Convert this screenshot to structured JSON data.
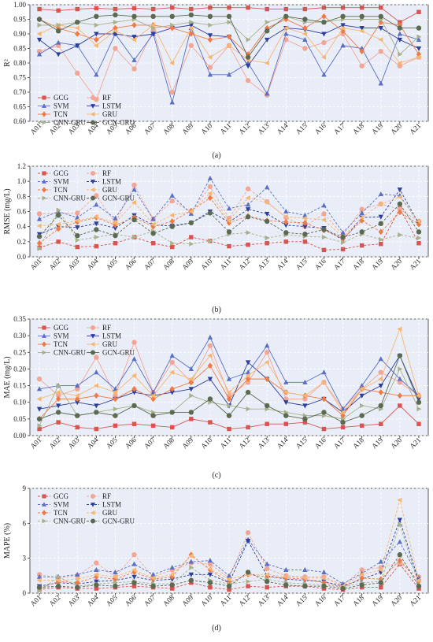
{
  "palette": {
    "GCG": "#d9534f",
    "RF": "#f2a696",
    "SVM": "#5b6fc4",
    "LSTM": "#2d3e9b",
    "TCN": "#ee7b45",
    "GRU": "#f6b774",
    "CNN-GRU": "#a9b18a",
    "GCN-GRU": "#5c6a52"
  },
  "markers": {
    "GCG": "square",
    "RF": "circle",
    "SVM": "triangle-up",
    "LSTM": "triangle-down",
    "TCN": "diamond",
    "GRU": "triangle-left",
    "CNN-GRU": "triangle-right",
    "GCN-GRU": "circle"
  },
  "chart_data": [
    {
      "type": "line",
      "panel": "(a)",
      "ylabel": "R²",
      "ylim": [
        0.6,
        1.0
      ],
      "yticks": [
        "0.60",
        "0.65",
        "0.70",
        "0.75",
        "0.80",
        "0.85",
        "0.90",
        "0.95",
        "1.00"
      ],
      "yticks_values": [
        0.6,
        0.65,
        0.7,
        0.75,
        0.8,
        0.85,
        0.9,
        0.95,
        1.0
      ],
      "dashed": false,
      "legend_position": "bottom-left",
      "categories": [
        "A01",
        "A02",
        "A03",
        "A04",
        "A05",
        "A06",
        "A07",
        "A08",
        "A09",
        "A10",
        "A11",
        "A12",
        "A13",
        "A14",
        "A15",
        "A16",
        "A17",
        "A18",
        "A19",
        "A20",
        "A21"
      ],
      "series": [
        {
          "name": "GCG",
          "values": [
            0.985,
            0.98,
            0.985,
            0.988,
            0.985,
            0.988,
            0.985,
            0.99,
            0.985,
            0.99,
            0.99,
            0.99,
            0.985,
            0.985,
            0.985,
            0.99,
            0.99,
            0.99,
            0.99,
            0.94,
            0.975
          ]
        },
        {
          "name": "RF",
          "values": [
            0.84,
            0.86,
            0.765,
            0.675,
            0.85,
            0.78,
            0.91,
            0.7,
            0.86,
            0.785,
            0.86,
            0.74,
            0.69,
            0.88,
            0.85,
            0.87,
            0.9,
            0.79,
            0.84,
            0.79,
            0.82
          ]
        },
        {
          "name": "SVM",
          "values": [
            0.83,
            0.87,
            0.86,
            0.76,
            0.9,
            0.81,
            0.9,
            0.665,
            0.92,
            0.76,
            0.76,
            0.8,
            0.695,
            0.9,
            0.88,
            0.76,
            0.86,
            0.85,
            0.73,
            0.9,
            0.88
          ]
        },
        {
          "name": "LSTM",
          "values": [
            0.88,
            0.83,
            0.86,
            0.9,
            0.9,
            0.89,
            0.9,
            0.92,
            0.93,
            0.895,
            0.89,
            0.79,
            0.88,
            0.92,
            0.915,
            0.9,
            0.93,
            0.92,
            0.92,
            0.88,
            0.85
          ]
        },
        {
          "name": "TCN",
          "values": [
            0.95,
            0.92,
            0.9,
            0.88,
            0.92,
            0.93,
            0.93,
            0.92,
            0.9,
            0.88,
            0.89,
            0.83,
            0.92,
            0.95,
            0.92,
            0.96,
            0.91,
            0.84,
            0.94,
            0.93,
            0.83
          ]
        },
        {
          "name": "GRU",
          "values": [
            0.9,
            0.93,
            0.92,
            0.86,
            0.91,
            0.88,
            0.93,
            0.8,
            0.92,
            0.82,
            0.86,
            0.81,
            0.8,
            0.92,
            0.9,
            0.82,
            0.92,
            0.91,
            0.88,
            0.8,
            0.82
          ]
        },
        {
          "name": "CNN-GRU",
          "values": [
            0.93,
            0.93,
            0.94,
            0.93,
            0.94,
            0.95,
            0.92,
            0.93,
            0.94,
            0.93,
            0.94,
            0.88,
            0.94,
            0.96,
            0.94,
            0.94,
            0.95,
            0.95,
            0.95,
            0.83,
            0.89
          ]
        },
        {
          "name": "GCN-GRU",
          "values": [
            0.95,
            0.91,
            0.94,
            0.96,
            0.965,
            0.96,
            0.96,
            0.96,
            0.965,
            0.96,
            0.96,
            0.82,
            0.91,
            0.96,
            0.95,
            0.94,
            0.96,
            0.96,
            0.96,
            0.92,
            0.92
          ]
        }
      ]
    },
    {
      "type": "line",
      "panel": "(b)",
      "ylabel": "RMSE (mg/L)",
      "ylim": [
        0.0,
        1.2
      ],
      "yticks": [
        "0.0",
        "0.2",
        "0.4",
        "0.6",
        "0.8",
        "1.0",
        "1.2"
      ],
      "yticks_values": [
        0,
        0.2,
        0.4,
        0.6,
        0.8,
        1.0,
        1.2
      ],
      "dashed": true,
      "legend_position": "top-left",
      "categories": [
        "A01",
        "A02",
        "A03",
        "A04",
        "A05",
        "A06",
        "A07",
        "A08",
        "A09",
        "A10",
        "A11",
        "A12",
        "A13",
        "A14",
        "A15",
        "A16",
        "A17",
        "A18",
        "A19",
        "A20",
        "A21"
      ],
      "series": [
        {
          "name": "GCG",
          "values": [
            0.12,
            0.2,
            0.13,
            0.14,
            0.18,
            0.26,
            0.18,
            0.13,
            0.26,
            0.21,
            0.14,
            0.16,
            0.18,
            0.2,
            0.2,
            0.09,
            0.1,
            0.15,
            0.17,
            0.64,
            0.18
          ]
        },
        {
          "name": "RF",
          "values": [
            0.57,
            0.57,
            0.58,
            0.81,
            0.45,
            0.95,
            0.5,
            0.74,
            0.6,
            0.93,
            0.51,
            0.9,
            0.73,
            0.52,
            0.4,
            0.57,
            0.29,
            0.63,
            0.7,
            0.63,
            0.47
          ]
        },
        {
          "name": "SVM",
          "values": [
            0.5,
            0.6,
            0.52,
            0.69,
            0.51,
            0.89,
            0.5,
            0.81,
            0.57,
            1.04,
            0.64,
            0.69,
            0.92,
            0.6,
            0.55,
            0.68,
            0.32,
            0.58,
            0.83,
            0.81,
            0.45
          ]
        },
        {
          "name": "LSTM",
          "values": [
            0.3,
            0.4,
            0.39,
            0.44,
            0.38,
            0.55,
            0.42,
            0.41,
            0.45,
            0.6,
            0.46,
            0.63,
            0.57,
            0.42,
            0.4,
            0.38,
            0.22,
            0.52,
            0.53,
            0.89,
            0.44
          ]
        },
        {
          "name": "TCN",
          "values": [
            0.18,
            0.37,
            0.46,
            0.52,
            0.42,
            0.52,
            0.4,
            0.47,
            0.61,
            0.78,
            0.45,
            0.54,
            0.48,
            0.46,
            0.45,
            0.35,
            0.24,
            0.48,
            0.33,
            0.59,
            0.43
          ]
        },
        {
          "name": "GRU",
          "values": [
            0.41,
            0.43,
            0.48,
            0.53,
            0.45,
            0.72,
            0.43,
            0.55,
            0.6,
            0.84,
            0.48,
            0.78,
            0.72,
            0.53,
            0.51,
            0.49,
            0.26,
            0.52,
            0.7,
            0.79,
            0.47
          ]
        },
        {
          "name": "CNN-GRU",
          "values": [
            0.11,
            0.62,
            0.22,
            0.26,
            0.3,
            0.26,
            0.34,
            0.18,
            0.17,
            0.21,
            0.3,
            0.32,
            0.25,
            0.29,
            0.27,
            0.26,
            0.19,
            0.3,
            0.23,
            0.29,
            0.25
          ]
        },
        {
          "name": "GCN-GRU",
          "values": [
            0.27,
            0.55,
            0.28,
            0.36,
            0.28,
            0.49,
            0.31,
            0.4,
            0.45,
            0.58,
            0.33,
            0.53,
            0.47,
            0.32,
            0.3,
            0.36,
            0.26,
            0.33,
            0.44,
            0.7,
            0.33
          ]
        }
      ]
    },
    {
      "type": "line",
      "panel": "(c)",
      "ylabel": "MAE (mg/L)",
      "ylim": [
        0.0,
        0.35
      ],
      "yticks": [
        "0.00",
        "0.05",
        "0.10",
        "0.15",
        "0.20",
        "0.25",
        "0.30",
        "0.35"
      ],
      "yticks_values": [
        0,
        0.05,
        0.1,
        0.15,
        0.2,
        0.25,
        0.3,
        0.35
      ],
      "dashed": false,
      "legend_position": "top-left",
      "categories": [
        "A01",
        "A02",
        "A03",
        "A04",
        "A05",
        "A06",
        "A07",
        "A08",
        "A09",
        "A10",
        "A11",
        "A12",
        "A13",
        "A14",
        "A15",
        "A16",
        "A17",
        "A18",
        "A19",
        "A20",
        "A21"
      ],
      "series": [
        {
          "name": "GCG",
          "values": [
            0.02,
            0.04,
            0.025,
            0.02,
            0.03,
            0.035,
            0.03,
            0.025,
            0.05,
            0.04,
            0.02,
            0.025,
            0.035,
            0.035,
            0.04,
            0.02,
            0.025,
            0.03,
            0.035,
            0.09,
            0.035
          ]
        },
        {
          "name": "RF",
          "values": [
            0.17,
            0.12,
            0.14,
            0.235,
            0.12,
            0.28,
            0.13,
            0.22,
            0.16,
            0.27,
            0.12,
            0.16,
            0.25,
            0.11,
            0.11,
            0.16,
            0.08,
            0.14,
            0.19,
            0.16,
            0.12
          ]
        },
        {
          "name": "SVM",
          "values": [
            0.14,
            0.15,
            0.15,
            0.19,
            0.14,
            0.23,
            0.13,
            0.24,
            0.2,
            0.295,
            0.17,
            0.19,
            0.27,
            0.16,
            0.16,
            0.19,
            0.08,
            0.15,
            0.23,
            0.17,
            0.12
          ]
        },
        {
          "name": "LSTM",
          "values": [
            0.08,
            0.09,
            0.1,
            0.09,
            0.11,
            0.13,
            0.12,
            0.13,
            0.14,
            0.17,
            0.09,
            0.22,
            0.17,
            0.1,
            0.09,
            0.11,
            0.07,
            0.12,
            0.15,
            0.24,
            0.11
          ]
        },
        {
          "name": "TCN",
          "values": [
            0.05,
            0.11,
            0.11,
            0.12,
            0.11,
            0.14,
            0.11,
            0.14,
            0.16,
            0.21,
            0.11,
            0.17,
            0.17,
            0.13,
            0.12,
            0.11,
            0.06,
            0.14,
            0.13,
            0.12,
            0.12
          ]
        },
        {
          "name": "GRU",
          "values": [
            0.11,
            0.13,
            0.12,
            0.15,
            0.13,
            0.18,
            0.12,
            0.19,
            0.17,
            0.24,
            0.13,
            0.18,
            0.22,
            0.13,
            0.12,
            0.16,
            0.07,
            0.14,
            0.17,
            0.32,
            0.12
          ]
        },
        {
          "name": "CNN-GRU",
          "values": [
            0.03,
            0.15,
            0.06,
            0.07,
            0.08,
            0.09,
            0.07,
            0.07,
            0.12,
            0.1,
            0.09,
            0.08,
            0.08,
            0.07,
            0.06,
            0.06,
            0.05,
            0.09,
            0.08,
            0.2,
            0.08
          ]
        },
        {
          "name": "GCN-GRU",
          "values": [
            0.05,
            0.07,
            0.06,
            0.07,
            0.06,
            0.09,
            0.06,
            0.07,
            0.07,
            0.11,
            0.06,
            0.13,
            0.09,
            0.06,
            0.05,
            0.07,
            0.04,
            0.06,
            0.09,
            0.24,
            0.1
          ]
        }
      ]
    },
    {
      "type": "line",
      "panel": "(d)",
      "ylabel": "MAPE (%)",
      "ylim": [
        0,
        9
      ],
      "yticks": [
        "0",
        "3",
        "6",
        "9"
      ],
      "yticks_values": [
        0,
        3,
        6,
        9
      ],
      "dashed": true,
      "legend_position": "top-left",
      "categories": [
        "A01",
        "A02",
        "A03",
        "A04",
        "A05",
        "A06",
        "A07",
        "A08",
        "A09",
        "A10",
        "A11",
        "A12",
        "A13",
        "A14",
        "A15",
        "A16",
        "A17",
        "A18",
        "A19",
        "A20",
        "A21"
      ],
      "series": [
        {
          "name": "GCG",
          "values": [
            0.3,
            0.5,
            0.4,
            0.4,
            0.5,
            0.6,
            0.5,
            0.4,
            0.9,
            0.5,
            0.3,
            0.6,
            0.5,
            0.6,
            0.6,
            0.4,
            0.3,
            0.5,
            0.5,
            2.5,
            0.4
          ]
        },
        {
          "name": "RF",
          "values": [
            1.6,
            1.3,
            1.5,
            2.6,
            1.4,
            3.3,
            1.4,
            2.0,
            2.6,
            2.5,
            1.3,
            5.2,
            2.1,
            1.5,
            1.4,
            1.4,
            0.7,
            2.0,
            2.2,
            2.6,
            1.4
          ]
        },
        {
          "name": "SVM",
          "values": [
            1.4,
            1.4,
            1.6,
            2.0,
            1.8,
            2.5,
            1.6,
            2.2,
            2.7,
            2.8,
            1.5,
            4.6,
            2.5,
            2.0,
            2.0,
            1.8,
            0.8,
            1.7,
            2.7,
            4.4,
            1.3
          ]
        },
        {
          "name": "LSTM",
          "values": [
            0.6,
            0.9,
            0.8,
            1.0,
            1.1,
            1.4,
            1.1,
            1.2,
            1.6,
            1.6,
            0.9,
            4.5,
            1.5,
            1.2,
            1.1,
            1.0,
            0.6,
            1.2,
            1.8,
            6.3,
            1.0
          ]
        },
        {
          "name": "TCN",
          "values": [
            0.4,
            1.0,
            0.9,
            1.4,
            1.2,
            1.8,
            1.2,
            1.4,
            3.3,
            2.0,
            0.9,
            1.6,
            1.4,
            1.3,
            1.2,
            0.9,
            0.5,
            1.3,
            1.2,
            2.8,
            1.0
          ]
        },
        {
          "name": "GRU",
          "values": [
            1.1,
            1.1,
            1.2,
            1.6,
            1.4,
            2.0,
            1.3,
            1.6,
            3.2,
            2.1,
            1.2,
            1.6,
            1.6,
            1.4,
            1.3,
            1.3,
            0.6,
            1.6,
            2.0,
            8.0,
            1.1
          ]
        },
        {
          "name": "CNN-GRU",
          "values": [
            0.2,
            1.4,
            0.6,
            0.8,
            0.9,
            1.0,
            0.8,
            0.8,
            2.2,
            1.1,
            0.8,
            1.0,
            1.2,
            0.9,
            0.8,
            0.7,
            0.5,
            0.9,
            1.0,
            5.9,
            0.7
          ]
        },
        {
          "name": "GCN-GRU",
          "values": [
            0.5,
            0.6,
            0.5,
            0.7,
            0.6,
            0.9,
            0.6,
            0.7,
            1.1,
            0.9,
            0.6,
            1.8,
            1.0,
            0.7,
            0.6,
            0.6,
            0.4,
            0.7,
            0.9,
            3.3,
            0.6
          ]
        }
      ]
    }
  ]
}
